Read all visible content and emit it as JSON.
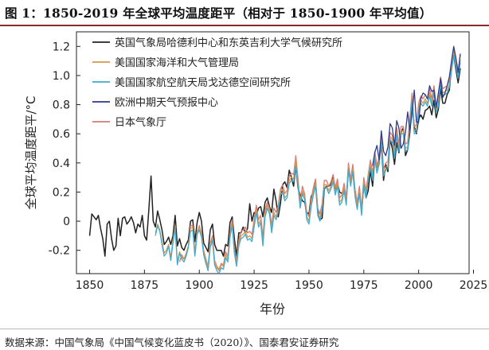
{
  "header": {
    "title": "图 1：1850-2019 年全球平均温度距平（相对于 1850-1900 年平均值）"
  },
  "footer": {
    "source": "数据来源：中国气象局《中国气候变化蓝皮书（2020）》、国泰君安证券研究"
  },
  "colors": {
    "title_rule": "#8c2b2b",
    "axis": "#222222"
  },
  "chart_data": {
    "type": "line",
    "title": "",
    "xlabel": "年份",
    "ylabel": "全球平均温度距平/°C",
    "xlim": [
      1844,
      2023
    ],
    "ylim": [
      -0.36,
      1.3
    ],
    "xticks": [
      1850,
      1875,
      1900,
      1925,
      1950,
      1975,
      2000,
      2025
    ],
    "xtick_labels": [
      "1850",
      "1875",
      "1900",
      "1925",
      "1950",
      "1975",
      "2000",
      "2025"
    ],
    "yticks": [
      -0.2,
      0,
      0.2,
      0.4,
      0.6,
      0.8,
      1.0,
      1.2
    ],
    "ytick_labels": [
      "-0.2",
      "0",
      "0.2",
      "0.4",
      "0.6",
      "0.8",
      "1.0",
      "1.2"
    ],
    "legend_position": "top-left",
    "series": [
      {
        "name": "英国气象局哈德利中心和东英吉利大学气候研究所",
        "color": "#222222",
        "start": 1850,
        "values": [
          -0.1,
          0.05,
          0.03,
          0.01,
          0.04,
          -0.05,
          -0.12,
          -0.24,
          -0.02,
          0.0,
          -0.12,
          -0.2,
          -0.17,
          0.02,
          -0.1,
          0.02,
          0.03,
          -0.02,
          0.0,
          0.03,
          -0.01,
          -0.08,
          -0.02,
          -0.04,
          0.04,
          -0.1,
          -0.13,
          0.08,
          0.31,
          0.0,
          -0.04,
          0.07,
          0.01,
          -0.06,
          -0.16,
          -0.14,
          -0.11,
          -0.16,
          -0.1,
          0.04,
          -0.17,
          -0.12,
          -0.18,
          -0.2,
          -0.16,
          -0.13,
          0.0,
          0.01,
          -0.14,
          -0.01,
          0.06,
          0.0,
          -0.15,
          -0.18,
          -0.21,
          -0.06,
          -0.02,
          -0.16,
          -0.2,
          -0.2,
          -0.2,
          -0.24,
          -0.16,
          -0.17,
          -0.01,
          0.03,
          -0.12,
          -0.24,
          -0.08,
          -0.08,
          -0.04,
          -0.08,
          -0.05,
          0.12,
          0.0,
          0.06,
          0.04,
          0.09,
          0.1,
          0.03,
          0.13,
          0.16,
          0.1,
          0.06,
          0.22,
          0.14,
          0.03,
          0.12,
          0.25,
          0.27,
          0.23,
          0.35,
          0.3,
          0.24,
          0.38,
          0.23,
          0.18,
          0.14,
          0.13,
          0.06,
          0.05,
          0.17,
          0.2,
          0.27,
          0.07,
          0.01,
          0.02,
          0.22,
          0.24,
          0.24,
          0.25,
          0.31,
          0.21,
          0.26,
          0.2,
          0.19,
          0.21,
          0.15,
          0.35,
          0.29,
          0.34,
          0.19,
          0.1,
          0.19,
          0.07,
          0.25,
          0.16,
          0.21,
          0.35,
          0.24,
          0.43,
          0.36,
          0.42,
          0.53,
          0.28,
          0.39,
          0.34,
          0.56,
          0.5,
          0.39,
          0.54,
          0.47,
          0.61,
          0.64,
          0.45,
          0.49,
          0.61,
          0.83,
          0.65,
          0.6,
          0.7,
          0.73,
          0.7,
          0.76,
          0.77,
          0.79,
          0.73,
          0.83,
          0.71,
          0.77,
          0.91,
          0.81,
          0.81,
          0.87,
          0.9,
          1.06,
          1.14,
          1.04,
          0.95,
          1.05
        ]
      },
      {
        "name": "美国国家海洋和大气管理局",
        "color": "#d39a4a",
        "start": 1880,
        "values": [
          -0.08,
          -0.02,
          -0.06,
          -0.14,
          -0.22,
          -0.2,
          -0.16,
          -0.25,
          -0.13,
          -0.03,
          -0.28,
          -0.21,
          -0.25,
          -0.26,
          -0.22,
          -0.17,
          -0.05,
          -0.04,
          -0.22,
          -0.07,
          -0.04,
          -0.09,
          -0.21,
          -0.27,
          -0.32,
          -0.16,
          -0.12,
          -0.28,
          -0.32,
          -0.34,
          -0.3,
          -0.31,
          -0.23,
          -0.26,
          -0.09,
          -0.01,
          -0.21,
          -0.29,
          -0.15,
          -0.1,
          -0.09,
          -0.07,
          -0.11,
          -0.1,
          -0.12,
          -0.02,
          0.08,
          -0.02,
          0.01,
          -0.15,
          0.05,
          0.11,
          0.07,
          -0.06,
          0.06,
          0.03,
          0.08,
          0.2,
          0.22,
          0.16,
          0.18,
          0.28,
          0.3,
          0.29,
          0.42,
          0.26,
          0.11,
          0.21,
          0.17,
          0.03,
          0.0,
          0.12,
          0.2,
          0.26,
          0.06,
          0.02,
          0.09,
          0.25,
          0.25,
          0.21,
          0.24,
          0.29,
          0.2,
          0.26,
          0.13,
          0.15,
          0.23,
          0.13,
          0.38,
          0.26,
          0.36,
          0.19,
          0.1,
          0.21,
          0.06,
          0.27,
          0.18,
          0.3,
          0.39,
          0.3,
          0.45,
          0.35,
          0.41,
          0.56,
          0.33,
          0.37,
          0.38,
          0.58,
          0.56,
          0.45,
          0.61,
          0.5,
          0.62,
          0.62,
          0.5,
          0.51,
          0.68,
          0.85,
          0.62,
          0.63,
          0.78,
          0.83,
          0.81,
          0.84,
          0.81,
          0.88,
          0.81,
          0.9,
          0.76,
          0.81,
          0.96,
          0.88,
          0.89,
          0.9,
          0.94,
          1.05,
          1.16,
          1.08,
          1.0,
          1.11
        ]
      },
      {
        "name": "美国国家航空航天局戈达德空间研究所",
        "color": "#41a9cf",
        "start": 1880,
        "values": [
          -0.1,
          -0.03,
          -0.07,
          -0.16,
          -0.24,
          -0.22,
          -0.17,
          -0.27,
          -0.15,
          -0.05,
          -0.3,
          -0.22,
          -0.26,
          -0.28,
          -0.24,
          -0.18,
          -0.07,
          -0.06,
          -0.24,
          -0.09,
          -0.06,
          -0.11,
          -0.23,
          -0.29,
          -0.34,
          -0.18,
          -0.13,
          -0.3,
          -0.34,
          -0.36,
          -0.32,
          -0.33,
          -0.25,
          -0.28,
          -0.11,
          -0.03,
          -0.22,
          -0.31,
          -0.17,
          -0.12,
          -0.11,
          -0.09,
          -0.13,
          -0.12,
          -0.14,
          -0.04,
          0.06,
          -0.04,
          -0.01,
          -0.17,
          0.03,
          0.09,
          0.05,
          -0.08,
          0.04,
          0.01,
          0.06,
          0.18,
          0.2,
          0.14,
          0.16,
          0.26,
          0.28,
          0.27,
          0.38,
          0.24,
          0.09,
          0.19,
          0.15,
          0.01,
          -0.02,
          0.1,
          0.18,
          0.24,
          0.04,
          0.0,
          0.07,
          0.23,
          0.23,
          0.19,
          0.22,
          0.27,
          0.18,
          0.24,
          0.11,
          0.13,
          0.21,
          0.11,
          0.36,
          0.24,
          0.34,
          0.17,
          0.08,
          0.19,
          0.04,
          0.25,
          0.16,
          0.28,
          0.37,
          0.28,
          0.43,
          0.33,
          0.39,
          0.54,
          0.31,
          0.35,
          0.36,
          0.56,
          0.54,
          0.43,
          0.59,
          0.48,
          0.6,
          0.6,
          0.48,
          0.49,
          0.66,
          0.83,
          0.6,
          0.61,
          0.76,
          0.81,
          0.79,
          0.82,
          0.79,
          0.86,
          0.79,
          0.88,
          0.74,
          0.79,
          0.94,
          0.86,
          0.87,
          0.88,
          0.92,
          1.03,
          1.14,
          1.06,
          0.98,
          1.09
        ]
      },
      {
        "name": "欧洲中期天气预报中心",
        "color": "#2e3a8c",
        "start": 1979,
        "values": [
          0.38,
          0.47,
          0.52,
          0.42,
          0.62,
          0.48,
          0.45,
          0.51,
          0.67,
          0.64,
          0.52,
          0.69,
          0.64,
          0.5,
          0.53,
          0.61,
          0.75,
          0.62,
          0.74,
          0.9,
          0.68,
          0.68,
          0.84,
          0.88,
          0.87,
          0.84,
          0.93,
          0.89,
          0.9,
          0.78,
          0.88,
          0.98,
          0.85,
          0.88,
          0.93,
          0.99,
          1.1,
          1.2,
          1.12,
          1.02,
          1.15
        ]
      },
      {
        "name": "日本气象厅",
        "color": "#d97a72",
        "start": 1891,
        "values": [
          -0.28,
          -0.23,
          -0.26,
          -0.24,
          -0.18,
          -0.03,
          -0.03,
          -0.22,
          -0.09,
          -0.03,
          -0.08,
          -0.2,
          -0.26,
          -0.31,
          -0.15,
          -0.1,
          -0.27,
          -0.31,
          -0.33,
          -0.29,
          -0.3,
          -0.21,
          -0.24,
          -0.08,
          0.01,
          -0.19,
          -0.27,
          -0.13,
          -0.07,
          -0.06,
          -0.04,
          -0.08,
          -0.07,
          -0.09,
          0.01,
          0.11,
          0.01,
          0.04,
          -0.11,
          0.08,
          0.13,
          0.09,
          -0.03,
          0.09,
          0.06,
          0.11,
          0.22,
          0.25,
          0.19,
          0.21,
          0.31,
          0.33,
          0.32,
          0.45,
          0.29,
          0.13,
          0.24,
          0.19,
          0.06,
          0.03,
          0.15,
          0.23,
          0.29,
          0.09,
          0.05,
          0.12,
          0.28,
          0.28,
          0.24,
          0.27,
          0.32,
          0.23,
          0.29,
          0.16,
          0.18,
          0.26,
          0.16,
          0.4,
          0.29,
          0.39,
          0.22,
          0.13,
          0.24,
          0.09,
          0.3,
          0.21,
          0.32,
          0.42,
          0.33,
          0.48,
          0.38,
          0.44,
          0.59,
          0.36,
          0.4,
          0.41,
          0.61,
          0.59,
          0.48,
          0.64,
          0.53,
          0.65,
          0.65,
          0.53,
          0.54,
          0.71,
          0.88,
          0.65,
          0.66,
          0.81,
          0.86,
          0.84,
          0.87,
          0.84,
          0.91,
          0.84,
          0.93,
          0.79,
          0.84,
          0.99,
          0.91,
          0.92,
          0.93,
          0.97,
          1.08,
          1.19,
          1.11,
          1.03,
          1.14
        ]
      }
    ]
  }
}
